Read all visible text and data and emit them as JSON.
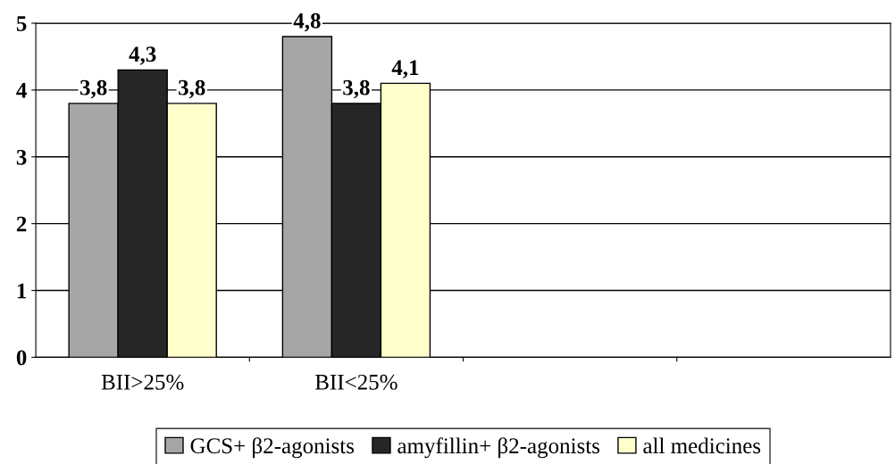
{
  "chart_data": {
    "type": "bar",
    "categories": [
      "BII>25%",
      "BII<25%",
      null,
      null
    ],
    "series": [
      {
        "name": "GCS+ β2-agonists",
        "color": "#a6a6a6",
        "values": [
          3.8,
          4.8,
          null,
          null
        ],
        "value_labels": [
          "3,8",
          "4,8",
          null,
          null
        ]
      },
      {
        "name": "amyfillin+ β2-agonists",
        "color": "#262626",
        "values": [
          4.3,
          3.8,
          null,
          null
        ],
        "value_labels": [
          "4,3",
          "3,8",
          null,
          null
        ]
      },
      {
        "name": "all medicines",
        "color": "#ffffcc",
        "values": [
          3.8,
          4.1,
          null,
          null
        ],
        "value_labels": [
          "3,8",
          "4,1",
          null,
          null
        ]
      }
    ],
    "ylim": [
      0,
      5
    ],
    "yticks": [
      0,
      1,
      2,
      3,
      4,
      5
    ],
    "grid": "y",
    "legend": "bottom"
  }
}
